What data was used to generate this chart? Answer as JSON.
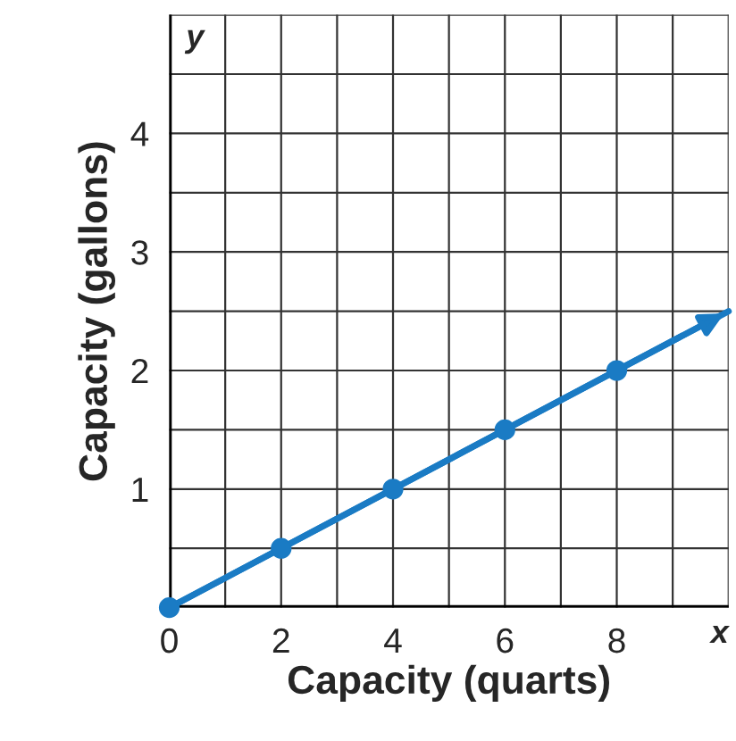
{
  "chart_data": {
    "type": "line",
    "xlabel": "Capacity (quarts)",
    "ylabel": "Capacity (gallons)",
    "annotations": [
      "x",
      "y"
    ],
    "xlim": [
      0,
      10
    ],
    "ylim": [
      0,
      5
    ],
    "xticks": [
      0,
      {
        "value": 1,
        "label": null
      },
      2,
      {
        "value": 3,
        "label": null
      },
      4,
      {
        "value": 5,
        "label": null
      },
      6,
      {
        "value": 7,
        "label": null
      },
      8,
      {
        "value": 9,
        "label": null
      },
      {
        "value": 10,
        "label": null
      }
    ],
    "yticks": [
      {
        "value": 0,
        "label": null
      },
      {
        "value": 0.5,
        "label": null
      },
      1,
      {
        "value": 1.5,
        "label": null
      },
      2,
      {
        "value": 2.5,
        "label": null
      },
      3,
      {
        "value": 3.5,
        "label": null
      },
      4,
      {
        "value": 4.5,
        "label": null
      },
      {
        "value": 5,
        "label": null
      }
    ],
    "grid": true,
    "series": [
      {
        "color": "#1a7bc4",
        "x": [
          0,
          10
        ],
        "values": [
          0,
          2.5
        ],
        "marker": "none"
      },
      {
        "type": "scatter",
        "color": "#1a7bc4",
        "x": [
          0,
          2,
          4,
          6,
          8
        ],
        "values": [
          0,
          0.5,
          1,
          1.5,
          2
        ],
        "marker": "circle"
      }
    ]
  }
}
